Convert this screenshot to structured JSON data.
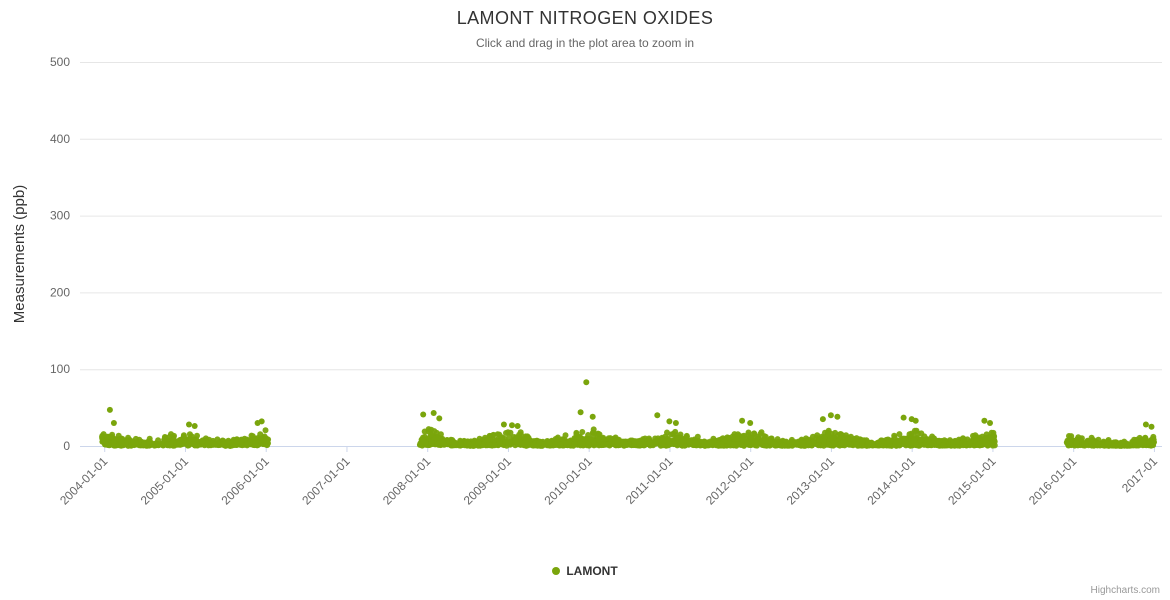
{
  "header": {
    "title": "LAMONT NITROGEN OXIDES",
    "subtitle": "Click and drag in the plot area to zoom in"
  },
  "legend": {
    "items": [
      {
        "label": "LAMONT",
        "color": "#7aa50c"
      }
    ]
  },
  "credits": {
    "label": "Highcharts.com"
  },
  "chart_data": {
    "type": "scatter",
    "title": "LAMONT NITROGEN OXIDES",
    "subtitle": "Click and drag in the plot area to zoom in",
    "xlabel": "",
    "ylabel": "Measurements (ppb)",
    "ylim": [
      0,
      500
    ],
    "xlim": [
      2003.7,
      2017.1
    ],
    "yticks": [
      0,
      100,
      200,
      300,
      400,
      500
    ],
    "xticks": [
      {
        "x": 2004,
        "label": "2004-01-01"
      },
      {
        "x": 2005,
        "label": "2005-01-01"
      },
      {
        "x": 2006,
        "label": "2006-01-01"
      },
      {
        "x": 2007,
        "label": "2007-01-01"
      },
      {
        "x": 2008,
        "label": "2008-01-01"
      },
      {
        "x": 2009,
        "label": "2009-01-01"
      },
      {
        "x": 2010,
        "label": "2010-01-01"
      },
      {
        "x": 2011,
        "label": "2011-01-01"
      },
      {
        "x": 2012,
        "label": "2012-01-01"
      },
      {
        "x": 2013,
        "label": "2013-01-01"
      },
      {
        "x": 2014,
        "label": "2014-01-01"
      },
      {
        "x": 2015,
        "label": "2015-01-01"
      },
      {
        "x": 2016,
        "label": "2016-01-01"
      },
      {
        "x": 2017,
        "label": "2017-01"
      }
    ],
    "grid": true,
    "legend_position": "bottom",
    "grid_color": "#e6e6e6",
    "axis_line_color": "#ccd6eb",
    "tick_label_color": "#666666",
    "axis_title_color": "#333333",
    "seed": 42,
    "series": [
      {
        "name": "LAMONT",
        "color": "#7aa50c",
        "marker_radius": 3,
        "clusters": [
          {
            "x_start": 2003.97,
            "x_end": 2006.03,
            "count": 520,
            "base": 2.5,
            "seasonal_amp": 6.5,
            "max": 35
          },
          {
            "x_start": 2007.9,
            "x_end": 2015.03,
            "count": 2100,
            "base": 2.5,
            "seasonal_amp": 7.5,
            "max": 38
          },
          {
            "x_start": 2015.92,
            "x_end": 2017.0,
            "count": 310,
            "base": 2.0,
            "seasonal_amp": 5.0,
            "max": 25
          }
        ],
        "outliers": [
          [
            2004.07,
            47
          ],
          [
            2004.12,
            30
          ],
          [
            2005.05,
            28
          ],
          [
            2005.12,
            26
          ],
          [
            2005.9,
            30
          ],
          [
            2005.95,
            32
          ],
          [
            2007.95,
            41
          ],
          [
            2008.08,
            43
          ],
          [
            2008.15,
            36
          ],
          [
            2008.95,
            28
          ],
          [
            2009.05,
            27
          ],
          [
            2009.12,
            26
          ],
          [
            2009.9,
            44
          ],
          [
            2009.97,
            83
          ],
          [
            2010.05,
            38
          ],
          [
            2010.85,
            40
          ],
          [
            2011.0,
            32
          ],
          [
            2011.08,
            30
          ],
          [
            2011.9,
            33
          ],
          [
            2012.0,
            30
          ],
          [
            2012.9,
            35
          ],
          [
            2013.0,
            40
          ],
          [
            2013.08,
            38
          ],
          [
            2013.9,
            37
          ],
          [
            2014.0,
            35
          ],
          [
            2014.05,
            33
          ],
          [
            2014.9,
            33
          ],
          [
            2014.97,
            30
          ],
          [
            2016.9,
            28
          ],
          [
            2016.97,
            25
          ]
        ]
      }
    ]
  }
}
